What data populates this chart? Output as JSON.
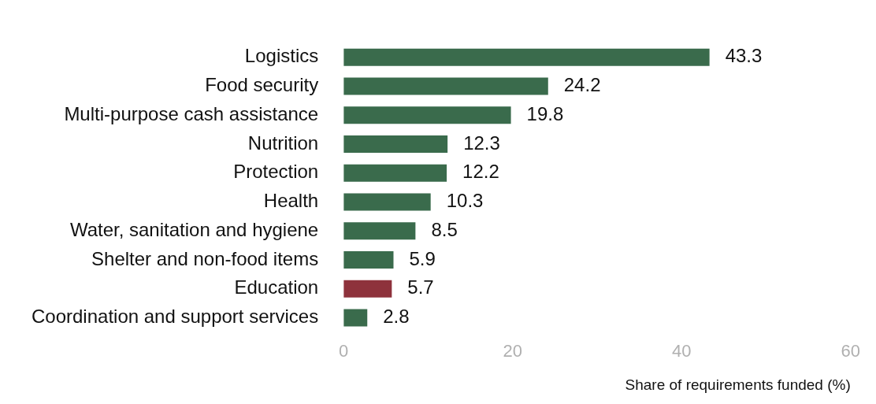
{
  "chart_data": {
    "type": "bar",
    "orientation": "horizontal",
    "xlabel": "Share of requirements funded (%)",
    "categories": [
      "Logistics",
      "Food security",
      "Multi-purpose cash assistance",
      "Nutrition",
      "Protection",
      "Health",
      "Water, sanitation and hygiene",
      "Shelter and non-food items",
      "Education",
      "Coordination and support services"
    ],
    "values": [
      43.3,
      24.2,
      19.8,
      12.3,
      12.2,
      10.3,
      8.5,
      5.9,
      5.7,
      2.8
    ],
    "colors": [
      "#3a6b4c",
      "#3a6b4c",
      "#3a6b4c",
      "#3a6b4c",
      "#3a6b4c",
      "#3a6b4c",
      "#3a6b4c",
      "#3a6b4c",
      "#8e323c",
      "#3a6b4c"
    ],
    "xlim": [
      0,
      60
    ],
    "xticks": [
      0,
      20,
      40,
      60
    ],
    "grid": false,
    "data_labels": true,
    "legend": false
  }
}
